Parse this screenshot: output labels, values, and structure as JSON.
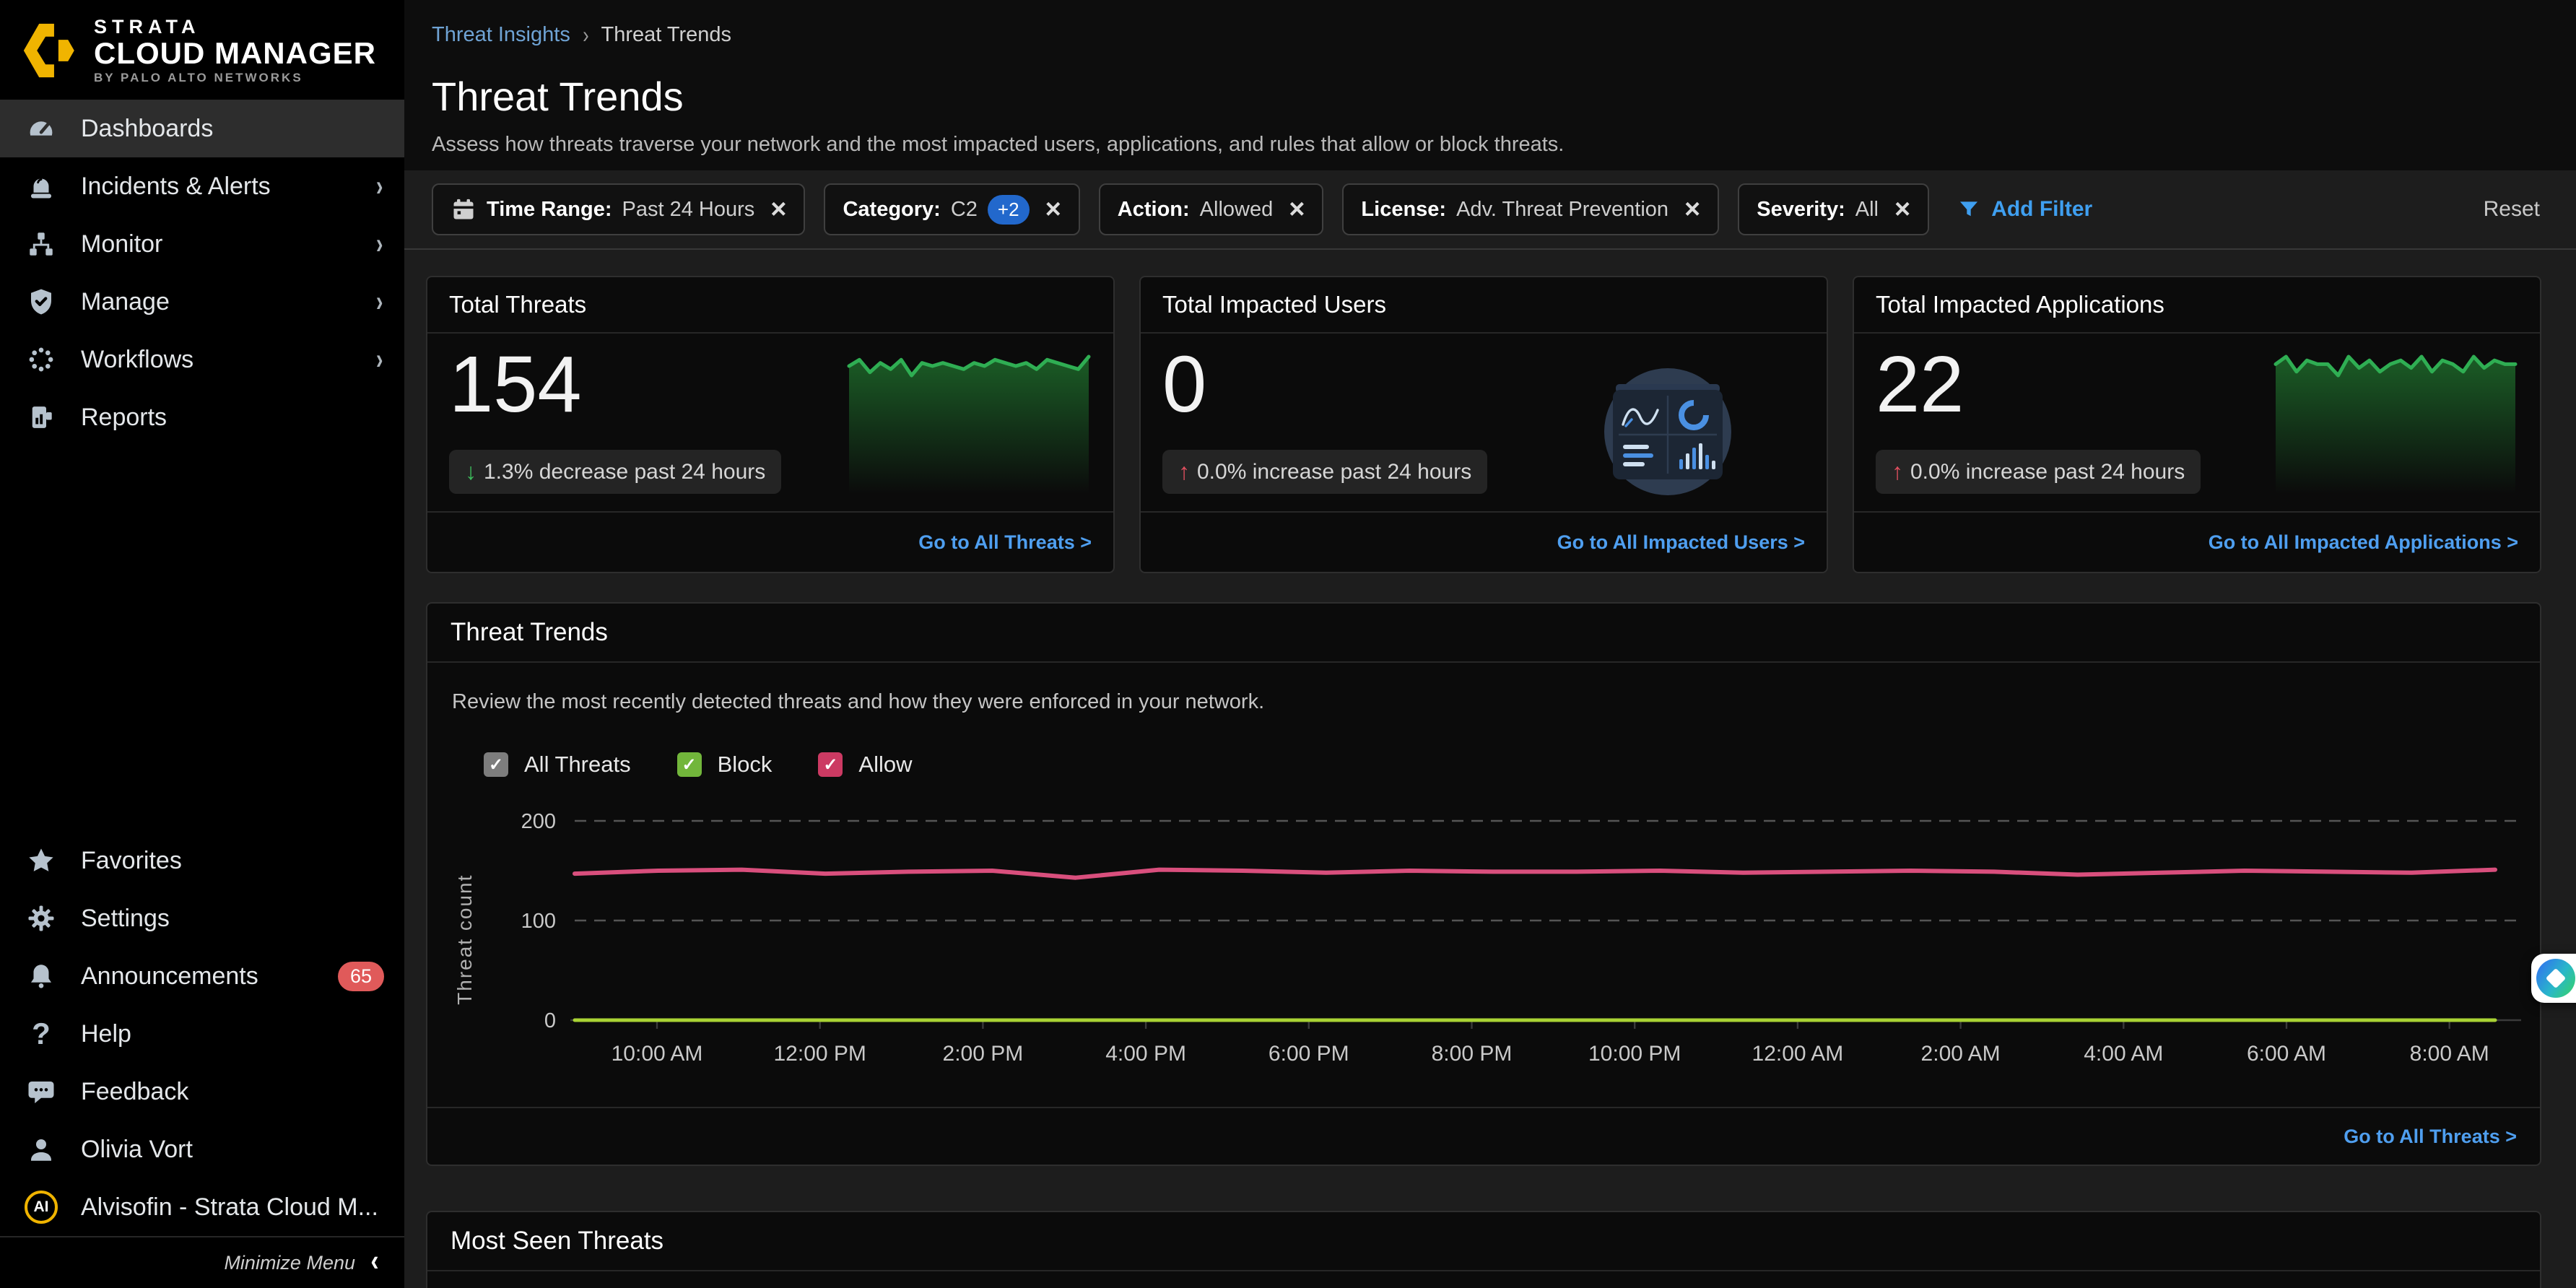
{
  "brand": {
    "line1": "STRATA",
    "line2": "CLOUD MANAGER",
    "line3": "BY PALO ALTO NETWORKS"
  },
  "sidebar": {
    "items": [
      {
        "label": "Dashboards",
        "icon": "gauge-icon",
        "active": true,
        "chevron": false
      },
      {
        "label": "Incidents & Alerts",
        "icon": "siren-icon",
        "active": false,
        "chevron": true
      },
      {
        "label": "Monitor",
        "icon": "sitemap-icon",
        "active": false,
        "chevron": true
      },
      {
        "label": "Manage",
        "icon": "shield-check-icon",
        "active": false,
        "chevron": true
      },
      {
        "label": "Workflows",
        "icon": "spinner-dots-icon",
        "active": false,
        "chevron": true
      },
      {
        "label": "Reports",
        "icon": "report-icon",
        "active": false,
        "chevron": false
      }
    ],
    "bottom": [
      {
        "label": "Favorites",
        "icon": "star-icon"
      },
      {
        "label": "Settings",
        "icon": "gear-icon"
      },
      {
        "label": "Announcements",
        "icon": "bell-icon",
        "badge": "65"
      },
      {
        "label": "Help",
        "icon": "question-icon"
      },
      {
        "label": "Feedback",
        "icon": "speech-bubble-icon"
      },
      {
        "label": "Olivia Vort",
        "icon": "person-icon"
      },
      {
        "label": "Alvisofin - Strata Cloud M...",
        "icon": "ai-avatar"
      }
    ],
    "badge": "65",
    "minimize_label": "Minimize Menu"
  },
  "breadcrumb": {
    "parent": "Threat Insights",
    "current": "Threat Trends"
  },
  "page": {
    "title": "Threat Trends",
    "subtitle": "Assess how threats traverse your network and the most impacted users, applications, and rules that allow or block threats."
  },
  "filters": {
    "chips": [
      {
        "label": "Time Range:",
        "value": "Past 24 Hours",
        "icon": "calendar-icon"
      },
      {
        "label": "Category:",
        "value": "C2",
        "extra": "+2"
      },
      {
        "label": "Action:",
        "value": "Allowed"
      },
      {
        "label": "License:",
        "value": "Adv. Threat Prevention"
      },
      {
        "label": "Severity:",
        "value": "All"
      }
    ],
    "add_filter_label": "Add Filter",
    "reset_label": "Reset"
  },
  "cards": [
    {
      "title": "Total Threats",
      "value": "154",
      "change": {
        "direction": "down",
        "text": "1.3% decrease past 24 hours",
        "color": "#3dbd5d"
      },
      "link_label": "Go to All Threats >",
      "sparkline": [
        151,
        153,
        149,
        152,
        150,
        153,
        148,
        152,
        151,
        152,
        151,
        150,
        152,
        151,
        153,
        152,
        151,
        152,
        150,
        153,
        152,
        151,
        150,
        154
      ]
    },
    {
      "title": "Total Impacted Users",
      "value": "0",
      "change": {
        "direction": "up",
        "text": "0.0% increase past 24 hours",
        "color": "#e04f5f"
      },
      "link_label": "Go to All Impacted Users >",
      "empty_state": true
    },
    {
      "title": "Total Impacted Applications",
      "value": "22",
      "change": {
        "direction": "up",
        "text": "0.0% increase past 24 hours",
        "color": "#e04f5f"
      },
      "link_label": "Go to All Impacted Applications >",
      "sparkline": [
        22,
        24,
        20,
        23,
        22,
        22,
        19,
        24,
        21,
        23,
        20,
        22,
        23,
        21,
        24,
        20,
        23,
        22,
        20,
        24,
        21,
        23,
        22,
        22
      ]
    }
  ],
  "trend_panel": {
    "title": "Threat Trends",
    "description": "Review the most recently detected threats and how they were enforced in your network.",
    "legend": [
      {
        "label": "All Threats",
        "color": "#7d7d7d",
        "checked": true
      },
      {
        "label": "Block",
        "color": "#72b63b",
        "checked": true
      },
      {
        "label": "Allow",
        "color": "#cc3a63",
        "checked": true
      }
    ],
    "footer_link": "Go to All Threats >"
  },
  "chart_data": {
    "type": "line",
    "title": "Threat Trends",
    "ylabel": "Threat count",
    "xlabel": "",
    "ylim": [
      0,
      200
    ],
    "yticks": [
      0,
      100,
      200
    ],
    "grid": "horizontal dashed at 100 and 200",
    "legend_position": "top-left above chart",
    "x_labels": [
      "10:00 AM",
      "12:00 PM",
      "2:00 PM",
      "4:00 PM",
      "6:00 PM",
      "8:00 PM",
      "10:00 PM",
      "12:00 AM",
      "2:00 AM",
      "4:00 AM",
      "6:00 AM",
      "8:00 AM"
    ],
    "series": [
      {
        "name": "All Threats",
        "color": "#8c8c8c",
        "values": [
          147,
          150,
          151,
          147,
          149,
          150,
          143,
          151,
          150,
          148,
          150,
          149,
          149,
          150,
          148,
          149,
          150,
          149,
          146,
          148,
          150,
          149,
          148,
          151
        ],
        "note": "coincides with Allow series, hidden beneath it"
      },
      {
        "name": "Block",
        "color": "#a9d334",
        "values": [
          0,
          0,
          0,
          0,
          0,
          0,
          0,
          0,
          0,
          0,
          0,
          0,
          0,
          0,
          0,
          0,
          0,
          0,
          0,
          0,
          0,
          0,
          0,
          0
        ]
      },
      {
        "name": "Allow",
        "color": "#d94f7d",
        "values": [
          147,
          150,
          151,
          147,
          149,
          150,
          143,
          151,
          150,
          148,
          150,
          149,
          149,
          150,
          148,
          149,
          150,
          149,
          146,
          148,
          150,
          149,
          148,
          151
        ]
      }
    ]
  },
  "most_seen": {
    "title": "Most Seen Threats"
  },
  "colors": {
    "accent_blue": "#4f9ff0",
    "breadcrumb_blue": "#6fa3d4",
    "badge_red": "#e05a5a",
    "spark_green": "#2fae53",
    "allow_pink": "#d94f7d",
    "block_lime": "#a9d334",
    "brand_yellow": "#f0b400",
    "panel_bg": "#0b0b0b",
    "content_bg": "#1d1d1d"
  }
}
